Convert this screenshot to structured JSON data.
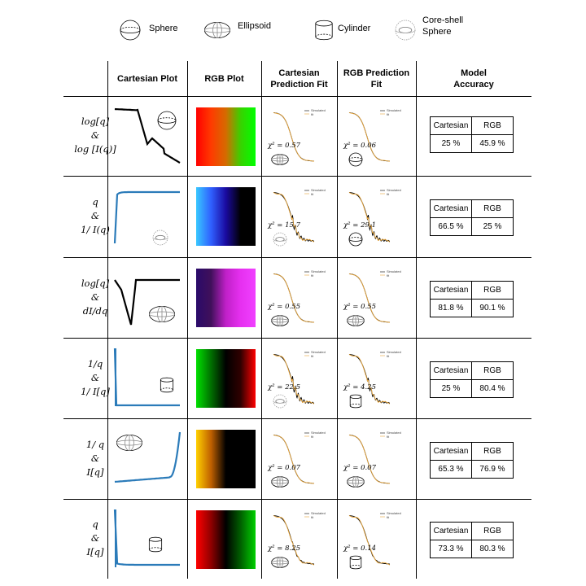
{
  "legend": [
    {
      "label": "Sphere",
      "icon": "sphere-icon"
    },
    {
      "label": "Ellipsoid",
      "icon": "ellipsoid-icon"
    },
    {
      "label": "Cylinder",
      "icon": "cylinder-icon"
    },
    {
      "label": "Core-shell\nSphere",
      "icon": "core-shell-sphere-icon"
    }
  ],
  "headers": {
    "cartesian_plot": "Cartesian Plot",
    "rgb_plot": "RGB Plot",
    "cartesian_fit": [
      "Cartesian",
      "Prediction Fit"
    ],
    "rgb_fit": [
      "RGB Prediction",
      "Fit"
    ],
    "accuracy": [
      "Model",
      "Accuracy"
    ]
  },
  "table_labels": {
    "cartesian": "Cartesian",
    "rgb": "RGB"
  },
  "fit_legend": {
    "simulated": "Simulated",
    "fit": "fit"
  },
  "colors": {
    "simulated": "#000000",
    "fit": "#e8a53a",
    "blue_curve": "#2b7bb9"
  },
  "rows": [
    {
      "label": [
        "log[q]",
        "&",
        "log [I(q)]"
      ],
      "cartesian_shape": "sphere",
      "gradient": [
        "#ff0000",
        "#ff3a00",
        "#d66a00",
        "#38d200",
        "#00ff00"
      ],
      "cart_chi": "χ² = 0.57",
      "cart_shape": "ellipsoid",
      "rgb_chi": "χ² = 0.06",
      "rgb_shape": "sphere",
      "cartesian_acc": "25 %",
      "rgb_acc": "45.9 %"
    },
    {
      "label": [
        "q",
        "&",
        "1/ I(q)"
      ],
      "cartesian_shape": "core-shell",
      "gradient": [
        "#38c8ff",
        "#3060ff",
        "#1a0aa0",
        "#000000",
        "#000000"
      ],
      "cart_chi": "χ² = 15.7",
      "cart_shape": "core-shell",
      "rgb_chi": "χ² = 29.1",
      "rgb_shape": "sphere",
      "cartesian_acc": "66.5 %",
      "rgb_acc": "25 %"
    },
    {
      "label": [
        "log[q]",
        "&",
        "dI/dq"
      ],
      "cartesian_shape": "ellipsoid",
      "gradient": [
        "#2a0a6a",
        "#40105a",
        "#c020c8",
        "#e630f0",
        "#f040ff"
      ],
      "cart_chi": "χ² = 0.55",
      "cart_shape": "ellipsoid",
      "rgb_chi": "χ² = 0.55",
      "rgb_shape": "ellipsoid",
      "cartesian_acc": "81.8 %",
      "rgb_acc": "90.1 %"
    },
    {
      "label": [
        "1/q",
        "&",
        "1/ I[q]"
      ],
      "cartesian_shape": "cylinder",
      "gradient": [
        "#00e000",
        "#007000",
        "#000000",
        "#300000",
        "#ff0000"
      ],
      "cart_chi": "χ² = 22.5",
      "cart_shape": "core-shell",
      "rgb_chi": "χ² = 4.25",
      "rgb_shape": "cylinder",
      "cartesian_acc": "25 %",
      "rgb_acc": "80.4 %"
    },
    {
      "label": [
        "1/ q",
        "&",
        "I[q]"
      ],
      "cartesian_shape": "ellipsoid",
      "gradient": [
        "#ffd000",
        "#c06000",
        "#000000",
        "#000000",
        "#000000"
      ],
      "cart_chi": "χ² = 0.07",
      "cart_shape": "ellipsoid",
      "rgb_chi": "χ² = 0.07",
      "rgb_shape": "ellipsoid",
      "cartesian_acc": "65.3 %",
      "rgb_acc": "76.9 %"
    },
    {
      "label": [
        "q",
        "&",
        "I[q]"
      ],
      "cartesian_shape": "cylinder",
      "gradient": [
        "#ff0000",
        "#900000",
        "#000000",
        "#006000",
        "#00d000"
      ],
      "cart_chi": "χ² = 8.25",
      "cart_shape": "ellipsoid",
      "rgb_chi": "χ² = 0.14",
      "rgb_shape": "cylinder",
      "cartesian_acc": "73.3 %",
      "rgb_acc": "80.3 %"
    }
  ]
}
